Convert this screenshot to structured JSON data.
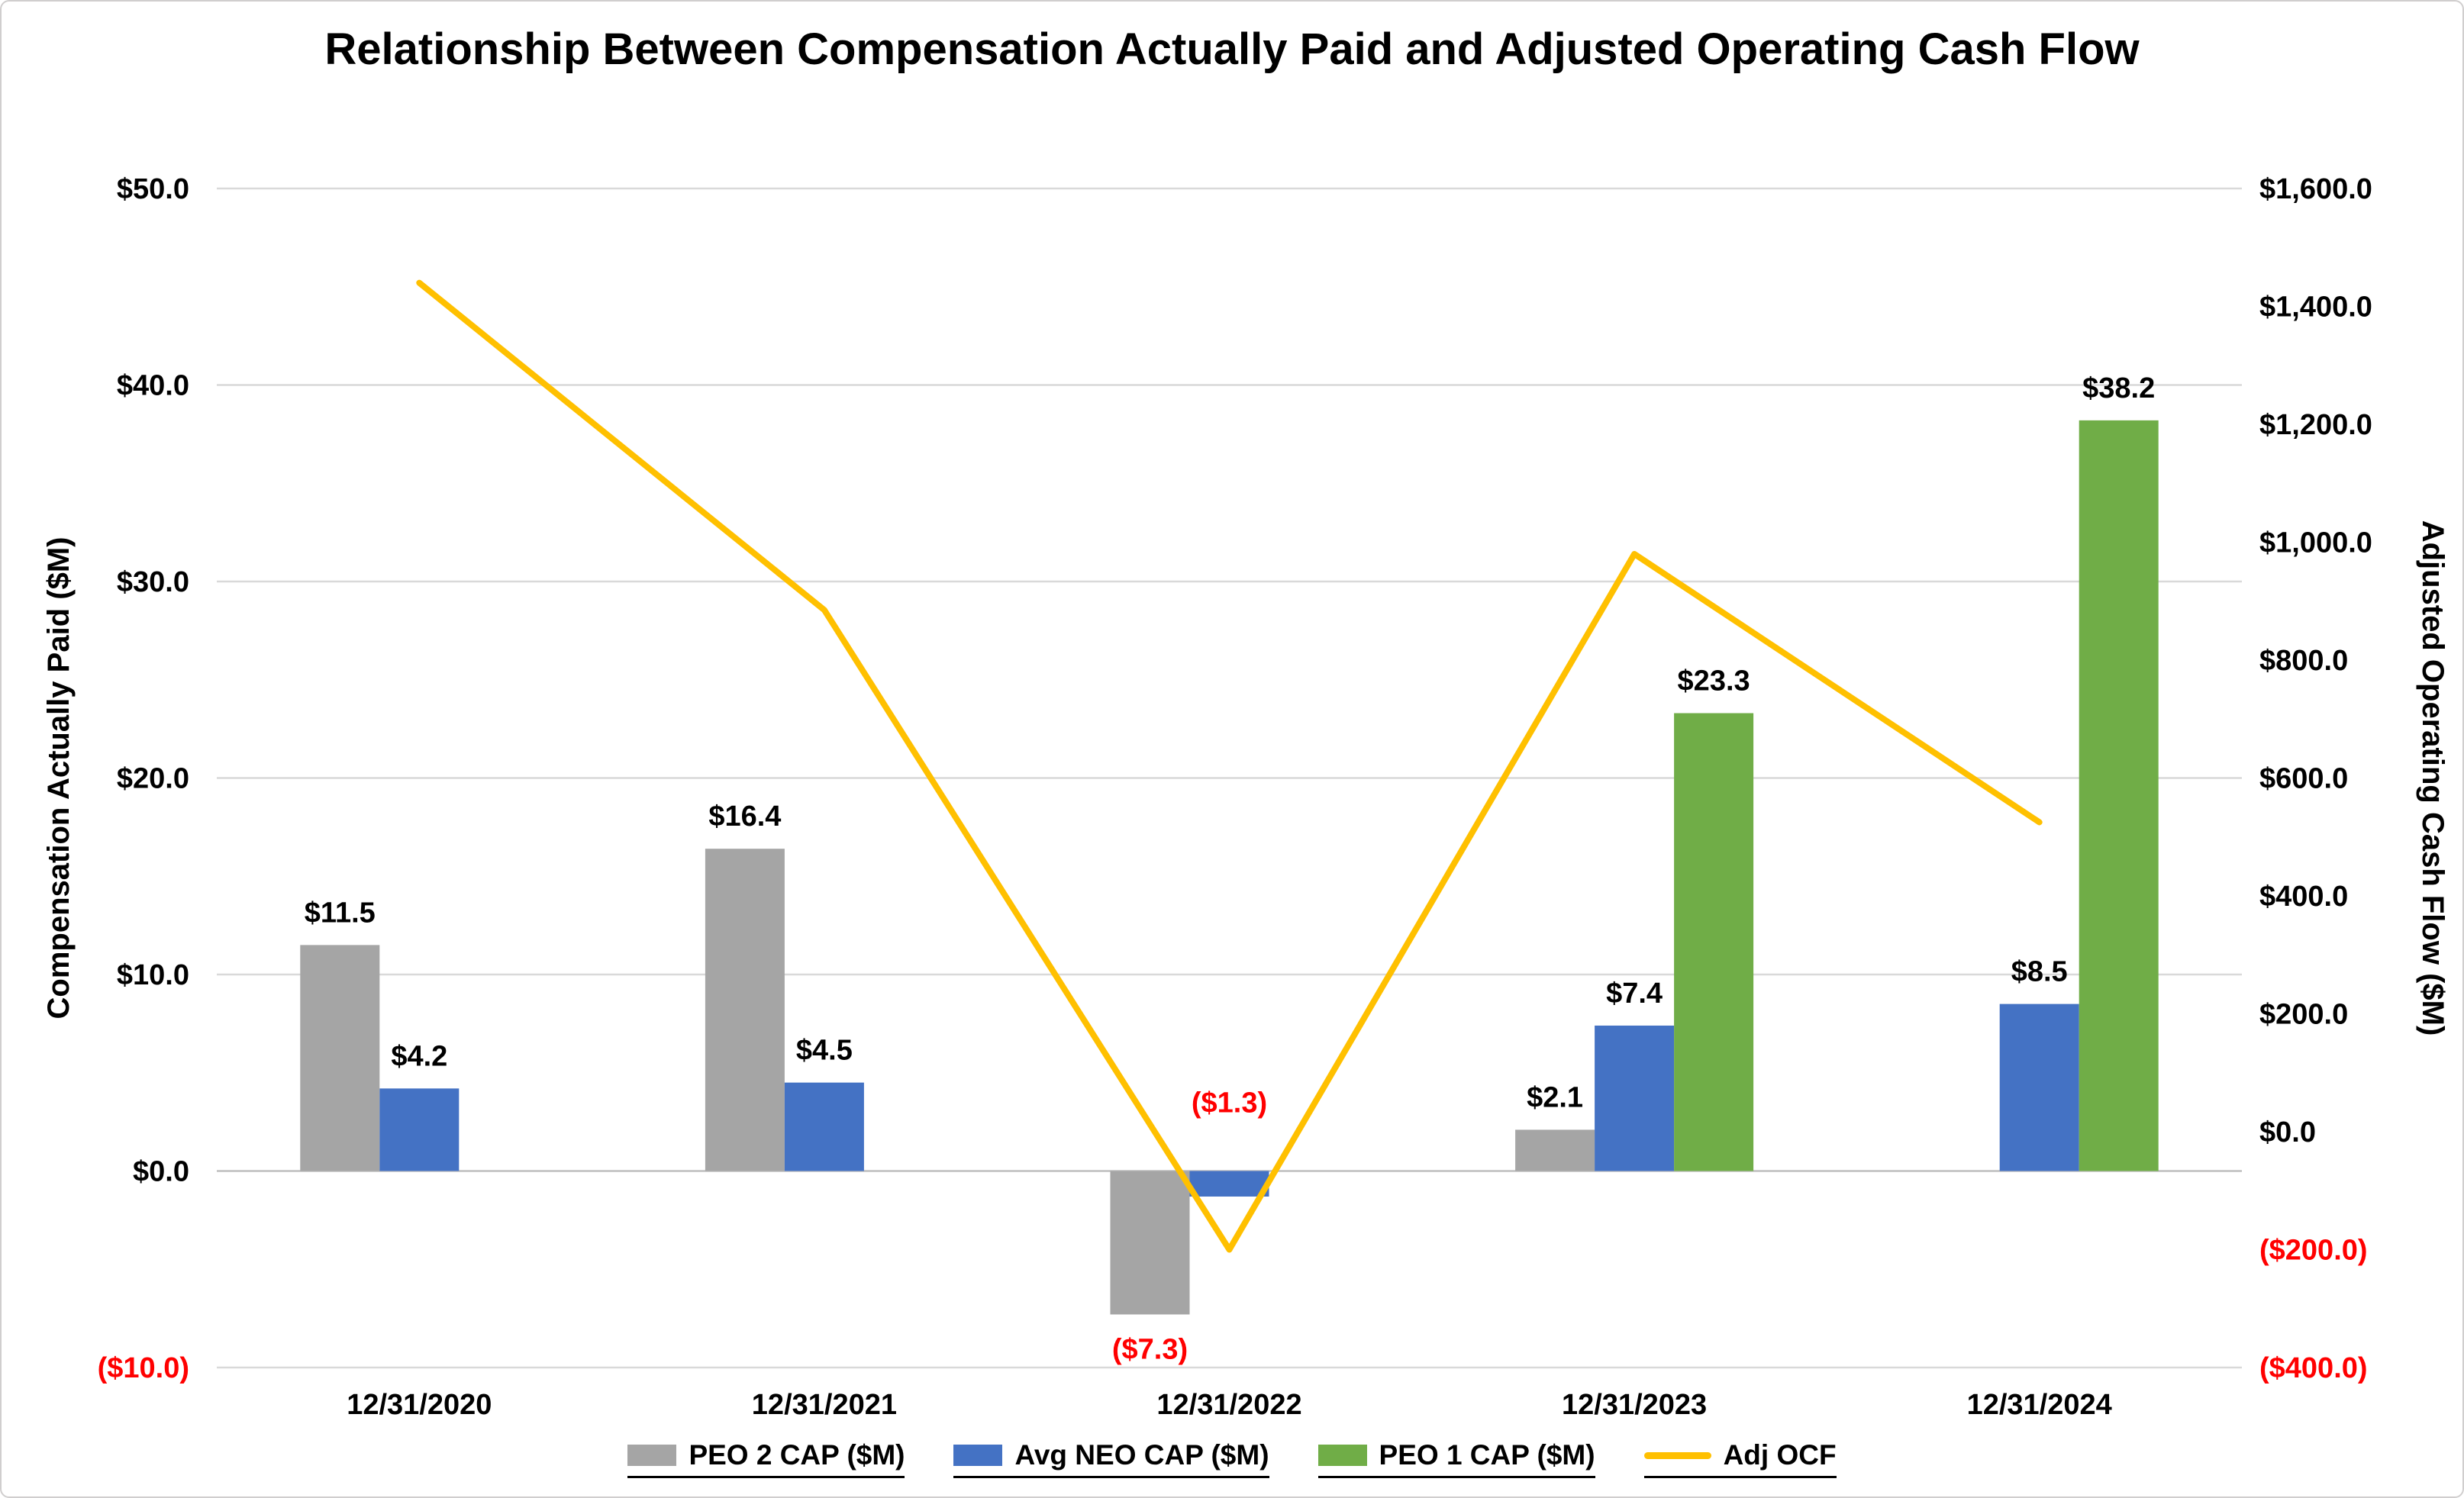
{
  "chart_data": {
    "type": "bar",
    "subtype": "combo-bar-line-dual-axis",
    "title": "Relationship Between Compensation Actually Paid and Adjusted Operating Cash Flow",
    "categories": [
      "12/31/2020",
      "12/31/2021",
      "12/31/2022",
      "12/31/2023",
      "12/31/2024"
    ],
    "bar_series": [
      {
        "name": "PEO 2 CAP ($M)",
        "color": "#A5A5A5",
        "axis": "left",
        "values": [
          11.5,
          16.4,
          -7.3,
          2.1,
          null
        ],
        "data_labels": [
          "$11.5",
          "$16.4",
          "($7.3)",
          "$2.1",
          null
        ]
      },
      {
        "name": "Avg NEO CAP ($M)",
        "color": "#4472C4",
        "axis": "left",
        "values": [
          4.2,
          4.5,
          -1.3,
          7.4,
          8.5
        ],
        "data_labels": [
          "$4.2",
          "$4.5",
          "($1.3)",
          "$7.4",
          "$8.5"
        ]
      },
      {
        "name": "PEO 1 CAP ($M)",
        "color": "#70AD47",
        "axis": "left",
        "values": [
          null,
          null,
          null,
          23.3,
          38.2
        ],
        "data_labels": [
          null,
          null,
          null,
          "$23.3",
          "$38.2"
        ]
      }
    ],
    "line_series": {
      "name": "Adj OCF",
      "color": "#FFC000",
      "axis": "right",
      "values": [
        1440,
        885,
        -200,
        980,
        525
      ]
    },
    "left_axis": {
      "title": "Compensation Actually Paid ($M)",
      "min": -10,
      "max": 50,
      "step": 10,
      "tick_labels": [
        "$50.0",
        "$40.0",
        "$30.0",
        "$20.0",
        "$10.0",
        "$0.0",
        "($10.0)"
      ]
    },
    "right_axis": {
      "title": "Adjusted Operating Cash Flow ($M)",
      "min": -400,
      "max": 1600,
      "step": 200,
      "tick_labels": [
        "$1,600.0",
        "$1,400.0",
        "$1,200.0",
        "$1,000.0",
        "$800.0",
        "$600.0",
        "$400.0",
        "$200.0",
        "$0.0",
        "($200.0)",
        "($400.0)"
      ]
    },
    "negative_color": "#FF0000",
    "grid": true,
    "legend_position": "bottom",
    "label_overrides": [
      {
        "series_index": 1,
        "category_index": 2,
        "position": "above_axis"
      }
    ]
  }
}
